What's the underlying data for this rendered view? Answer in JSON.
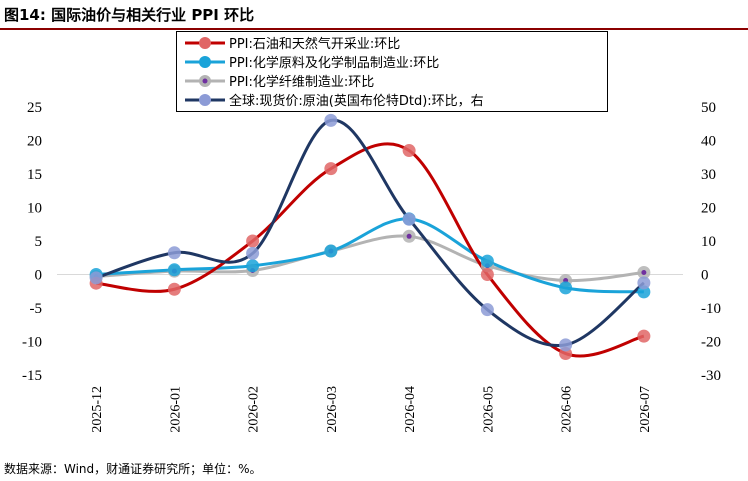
{
  "figure": {
    "title": "图14: 国际油价与相关行业 PPI 环比",
    "source": "数据来源：Wind，财通证券研究所；单位：%。"
  },
  "chart_data": {
    "type": "line",
    "categories": [
      "2025-12",
      "2026-01",
      "2026-02",
      "2026-03",
      "2026-04",
      "2026-05",
      "2026-06",
      "2026-07"
    ],
    "left_axis": {
      "ylim": [
        -15,
        25
      ],
      "ticks": [
        "25",
        "20",
        "15",
        "10",
        "5",
        "0",
        "-5",
        "-10",
        "-15"
      ]
    },
    "right_axis": {
      "ylim": [
        -30,
        50
      ],
      "ticks": [
        "50",
        "40",
        "30",
        "20",
        "10",
        "0",
        "-10",
        "-20",
        "-30"
      ]
    },
    "grid": false,
    "legend_position": "top",
    "series": [
      {
        "name": "PPI:石油和天然气开采业:环比",
        "axis": "left",
        "color": "#c00000",
        "marker_color": "#e06666",
        "marker_style": "filled",
        "values": [
          -1.3,
          -2.2,
          5.0,
          15.8,
          18.5,
          0.0,
          -11.8,
          -9.2
        ]
      },
      {
        "name": "PPI:化学原料及化学制品制造业:环比",
        "axis": "left",
        "color": "#1aa3d9",
        "marker_color": "#1aa3d9",
        "marker_style": "filled",
        "values": [
          0.0,
          0.7,
          1.3,
          3.5,
          8.3,
          2.0,
          -2.0,
          -2.6
        ]
      },
      {
        "name": "PPI:化学纤维制造业:环比",
        "axis": "left",
        "color": "#b3b3b3",
        "marker_color": "#b3b3b3",
        "marker_style": "dot-center",
        "values": [
          -0.3,
          0.5,
          0.6,
          3.5,
          5.7,
          1.3,
          -0.9,
          0.3
        ]
      },
      {
        "name": "全球:现货价:原油(英国布伦特Dtd):环比，右",
        "axis": "right",
        "color": "#1f3763",
        "marker_color": "#8c9bd6",
        "marker_style": "filled",
        "values": [
          -1.0,
          6.5,
          6.3,
          46.0,
          16.5,
          -10.5,
          -21.0,
          -2.5
        ]
      }
    ]
  }
}
